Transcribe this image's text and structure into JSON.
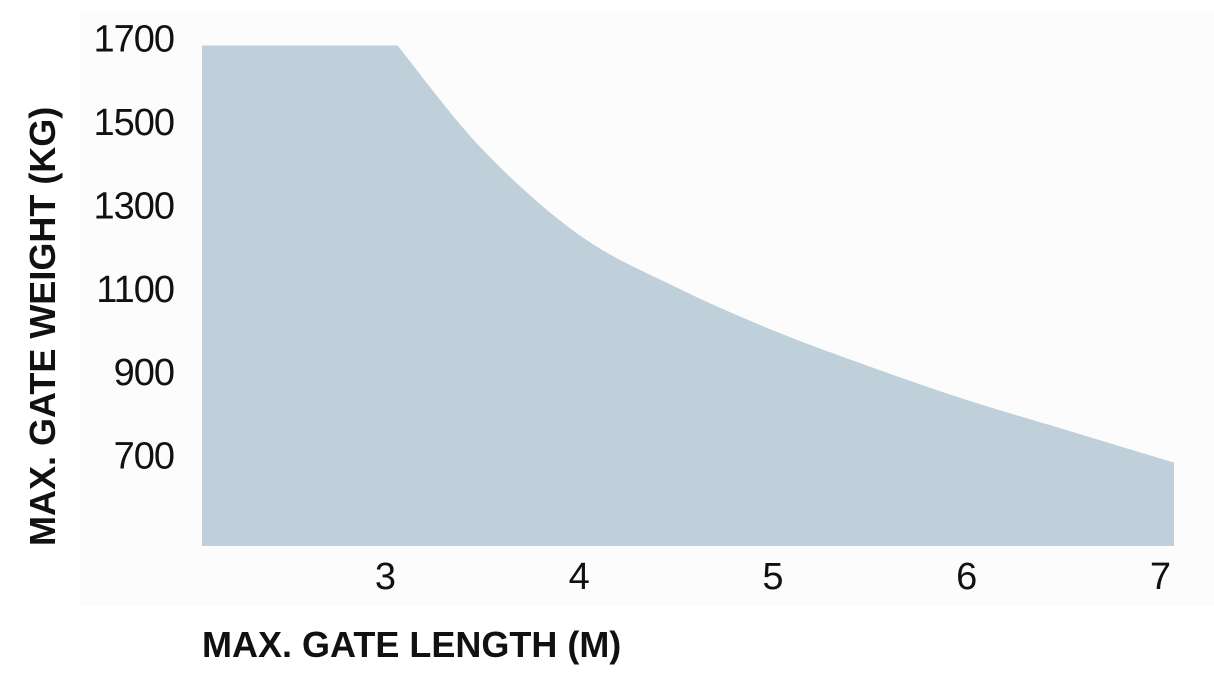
{
  "chart_data": {
    "type": "area",
    "title": "",
    "xlabel": "MAX. GATE LENGTH (M)",
    "ylabel": "MAX. GATE WEIGHT (KG)",
    "x_ticks": [
      3,
      4,
      5,
      6,
      7
    ],
    "y_ticks": [
      700,
      900,
      1100,
      1300,
      1500,
      1700
    ],
    "xlim": [
      2.05,
      7.07
    ],
    "ylim": [
      500,
      1700
    ],
    "grid": false,
    "series": [
      {
        "x": [
          2.05,
          3.06,
          3.5,
          4,
          4.5,
          5,
          5.5,
          6,
          6.5,
          7.07
        ],
        "y": [
          1700,
          1700,
          1450,
          1245,
          1120,
          1017,
          930,
          850,
          780,
          700
        ],
        "color": "#bfd0da"
      }
    ]
  }
}
